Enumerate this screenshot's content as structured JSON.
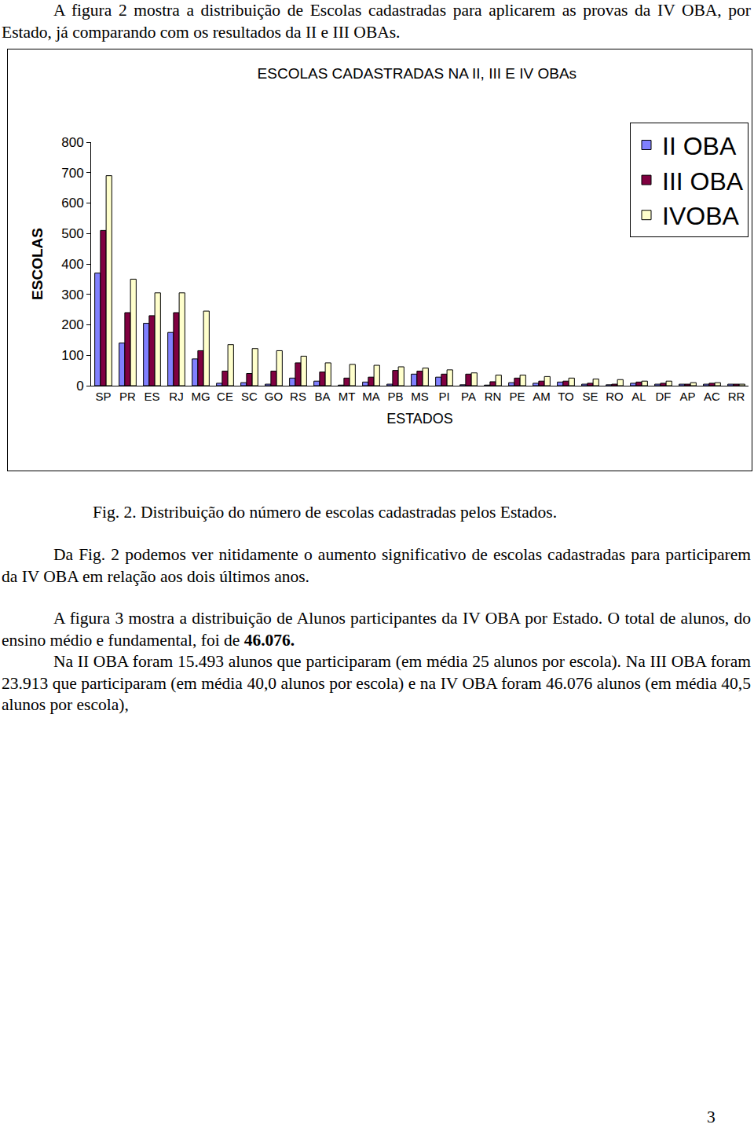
{
  "paragraphs_top": [
    [
      {
        "text": "A figura 2 mostra a distribuição de Escolas cadastradas para aplicarem as provas da IV OBA, por Estado, já comparando com os resultados da II e III OBAs."
      }
    ]
  ],
  "chart_data": {
    "type": "bar",
    "title": "ESCOLAS CADASTRADAS NA II, III E IV OBAs",
    "x_label": "ESTADOS",
    "y_label": "ESCOLAS",
    "categories": [
      "SP",
      "PR",
      "ES",
      "RJ",
      "MG",
      "CE",
      "SC",
      "GO",
      "RS",
      "BA",
      "MT",
      "MA",
      "PB",
      "MS",
      "PI",
      "PA",
      "RN",
      "PE",
      "AM",
      "TO",
      "SE",
      "RO",
      "AL",
      "DF",
      "AP",
      "AC",
      "RR"
    ],
    "series": [
      {
        "name": "II OBA",
        "color": "#8080ff",
        "values": [
          370,
          140,
          205,
          175,
          88,
          8,
          10,
          5,
          25,
          15,
          2,
          12,
          5,
          38,
          28,
          3,
          2,
          10,
          8,
          12,
          5,
          3,
          8,
          5,
          5,
          5,
          5
        ]
      },
      {
        "name": "III OBA",
        "color": "#800040",
        "values": [
          510,
          240,
          230,
          240,
          115,
          48,
          40,
          48,
          75,
          45,
          25,
          28,
          50,
          48,
          38,
          38,
          13,
          25,
          15,
          15,
          8,
          5,
          12,
          8,
          5,
          8,
          5
        ]
      },
      {
        "name": "IVOBA",
        "color": "#ffffcc",
        "values": [
          690,
          350,
          305,
          305,
          245,
          135,
          122,
          115,
          97,
          75,
          70,
          67,
          62,
          58,
          52,
          42,
          35,
          35,
          30,
          25,
          22,
          20,
          15,
          15,
          10,
          10,
          5
        ]
      }
    ],
    "ylim": [
      0,
      800
    ],
    "yticks": [
      0,
      100,
      200,
      300,
      400,
      500,
      600,
      700,
      800
    ],
    "grid": false,
    "legend": "top right"
  },
  "caption": "Fig. 2. Distribuição do número de escolas cadastradas pelos Estados.",
  "paragraphs": [
    [
      {
        "text": "Da Fig. 2 podemos ver nitidamente o aumento significativo de escolas cadastradas para participarem da IV OBA em relação aos dois últimos anos."
      }
    ],
    [
      {
        "text": "A figura 3 mostra a distribuição de Alunos participantes da IV OBA por Estado. O total de alunos, do ensino médio e fundamental, foi de "
      },
      {
        "text": "46.076.",
        "bold": true
      }
    ],
    [
      {
        "text": "Na II OBA foram 15.493 alunos que participaram (em média 25 alunos por escola). Na III OBA foram 23.913 que participaram (em média 40,0 alunos por escola) e na IV OBA foram 46.076 alunos (em média 40,5 alunos por escola),"
      }
    ]
  ],
  "page_number": "3"
}
